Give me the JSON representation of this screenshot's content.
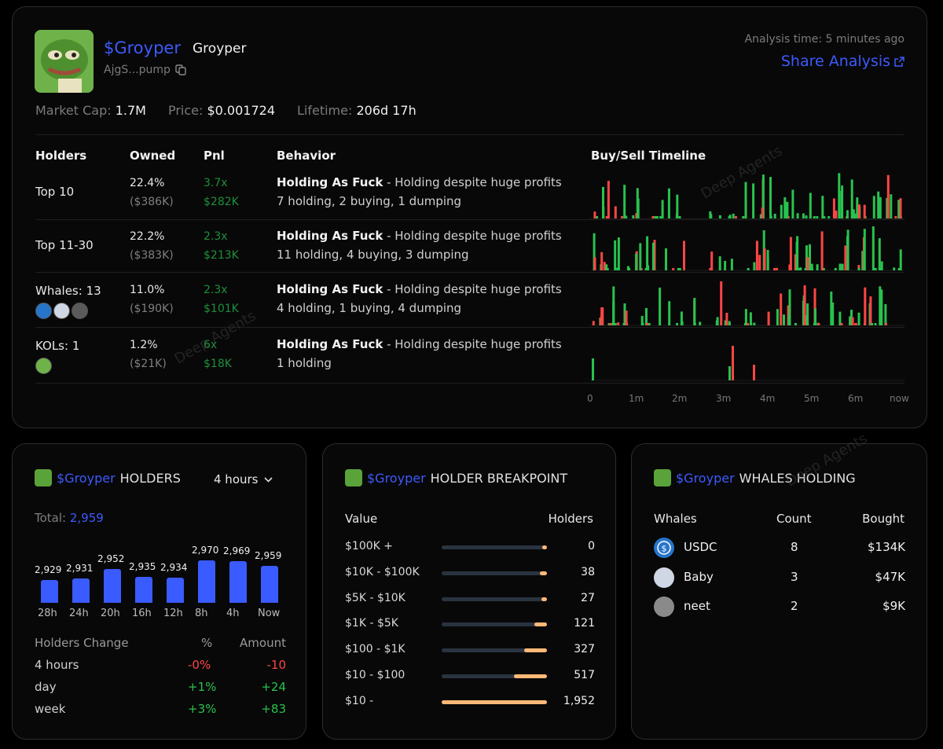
{
  "token": {
    "ticker": "$Groyper",
    "name": "Groyper",
    "address": "AjgS...pump",
    "analysis_time": "Analysis time: 5 minutes ago",
    "share_label": "Share Analysis",
    "stats": [
      {
        "label": "Market Cap:",
        "value": "1.7M"
      },
      {
        "label": "Price:",
        "value": "$0.001724"
      },
      {
        "label": "Lifetime:",
        "value": "206d 17h"
      }
    ]
  },
  "table": {
    "headers": [
      "Holders",
      "Owned",
      "Pnl",
      "Behavior",
      "Buy/Sell Timeline"
    ],
    "rows": [
      {
        "holders": "Top 10",
        "owned_pct": "22.4%",
        "owned_usd": "($386K)",
        "pnl_x": "3.7x",
        "pnl_usd": "$282K",
        "behavior_title": "Holding As Fuck",
        "behavior_desc": " - Holding despite huge profits",
        "behavior_sub": "7 holding, 2 buying, 1 dumping"
      },
      {
        "holders": "Top 11-30",
        "owned_pct": "22.2%",
        "owned_usd": "($383K)",
        "pnl_x": "2.3x",
        "pnl_usd": "$213K",
        "behavior_title": "Holding As Fuck",
        "behavior_desc": " - Holding despite huge profits",
        "behavior_sub": "11 holding, 4 buying, 3 dumping"
      },
      {
        "holders": "Whales: 13",
        "owned_pct": "11.0%",
        "owned_usd": "($190K)",
        "pnl_x": "2.3x",
        "pnl_usd": "$101K",
        "behavior_title": "Holding As Fuck",
        "behavior_desc": " - Holding despite huge profits",
        "behavior_sub": "4 holding, 1 buying, 4 dumping"
      },
      {
        "holders": "KOLs: 1",
        "owned_pct": "1.2%",
        "owned_usd": "($21K)",
        "pnl_x": "6x",
        "pnl_usd": "$18K",
        "behavior_title": "Holding As Fuck",
        "behavior_desc": " - Holding despite huge profits",
        "behavior_sub": "1 holding"
      }
    ],
    "timeline_ticks": [
      "0",
      "1m",
      "2m",
      "3m",
      "4m",
      "5m",
      "6m",
      "now"
    ]
  },
  "holders_card": {
    "ticker": "$Groyper",
    "title": "HOLDERS",
    "range": "4 hours",
    "total_label": "Total:",
    "total": "2,959",
    "chart_data": {
      "type": "bar",
      "categories": [
        "28h",
        "24h",
        "20h",
        "16h",
        "12h",
        "8h",
        "4h",
        "Now"
      ],
      "value_labels": [
        "2,929",
        "2,931",
        "2,952",
        "2,935",
        "2,934",
        "2,970",
        "2,969",
        "2,959"
      ],
      "values": [
        2929,
        2931,
        2952,
        2935,
        2934,
        2970,
        2969,
        2959
      ],
      "title": "HOLDERS"
    },
    "change_headers": [
      "Holders Change",
      "%",
      "Amount"
    ],
    "changes": [
      {
        "period": "4 hours",
        "pct": "-0%",
        "amount": "-10",
        "dir": "down"
      },
      {
        "period": "day",
        "pct": "+1%",
        "amount": "+24",
        "dir": "up"
      },
      {
        "period": "week",
        "pct": "+3%",
        "amount": "+83",
        "dir": "up"
      }
    ]
  },
  "breakpoint_card": {
    "ticker": "$Groyper",
    "title": "HOLDER BREAKPOINT",
    "headers": [
      "Value",
      "Holders"
    ],
    "rows": [
      {
        "label": "$100K +",
        "count": "0",
        "share": 0.04
      },
      {
        "label": "$10K - $100K",
        "count": "38",
        "share": 0.07
      },
      {
        "label": "$5K - $10K",
        "count": "27",
        "share": 0.05
      },
      {
        "label": "$1K - $5K",
        "count": "121",
        "share": 0.12
      },
      {
        "label": "$100 - $1K",
        "count": "327",
        "share": 0.22
      },
      {
        "label": "$10 - $100",
        "count": "517",
        "share": 0.31
      },
      {
        "label": "$10 -",
        "count": "1,952",
        "share": 1.0
      }
    ]
  },
  "whales_card": {
    "ticker": "$Groyper",
    "title": "WHALES HOLDING",
    "headers": [
      "Whales",
      "Count",
      "Bought"
    ],
    "rows": [
      {
        "name": "USDC",
        "count": "8",
        "bought": "$134K",
        "color": "#2775ca"
      },
      {
        "name": "Baby",
        "count": "3",
        "bought": "$47K",
        "color": "#cfd6e4"
      },
      {
        "name": "neet",
        "count": "2",
        "bought": "$9K",
        "color": "#8a8a8a"
      }
    ]
  },
  "watermark": "Deep Agents",
  "colors": {
    "accent": "#3d5afe",
    "buy": "#29c24f",
    "sell": "#ff4545",
    "breakpoint": "#ffb877"
  }
}
